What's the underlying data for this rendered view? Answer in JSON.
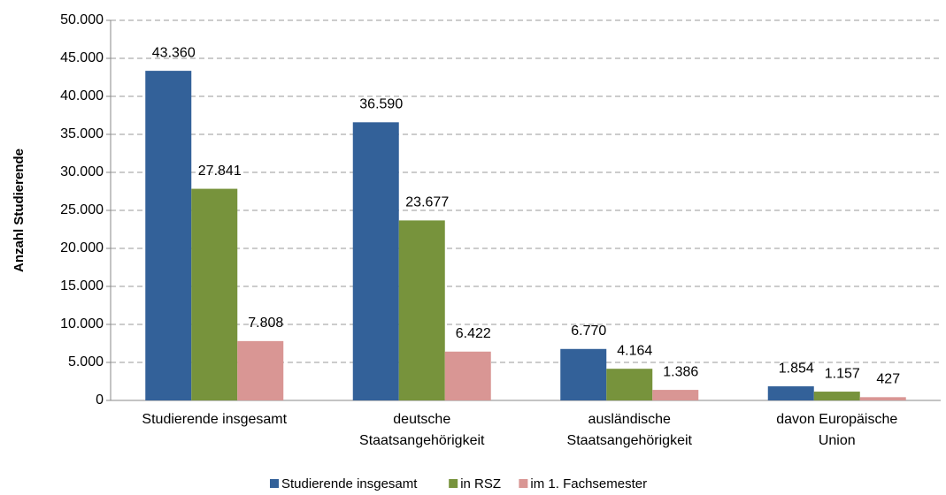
{
  "chart_data": {
    "type": "bar",
    "y_label": "Anzahl Studierende",
    "categories": [
      "Studierende insgesamt",
      "deutsche Staatsangehörigkeit",
      "ausländische Staatsangehörigkeit",
      "davon Europäische Union"
    ],
    "series": [
      {
        "name": "Studierende insgesamt",
        "color": "#336199",
        "values": [
          43360,
          36590,
          6770,
          1854
        ],
        "value_labels": [
          "43.360",
          "36.590",
          "6.770",
          "1.854"
        ]
      },
      {
        "name": "in RSZ",
        "color": "#77933c",
        "values": [
          27841,
          23677,
          4164,
          1157
        ],
        "value_labels": [
          "27.841",
          "23.677",
          "4.164",
          "1.157"
        ]
      },
      {
        "name": "im 1. Fachsemester",
        "color": "#d99694",
        "values": [
          7808,
          6422,
          1386,
          427
        ],
        "value_labels": [
          "7.808",
          "6.422",
          "1.386",
          "427"
        ]
      }
    ],
    "ylim": [
      0,
      50000
    ],
    "yticks": [
      0,
      {
        "value": 5000,
        "label": "5.000"
      },
      {
        "value": 10000,
        "label": "10.000"
      },
      {
        "value": 15000,
        "label": "15.000"
      },
      {
        "value": 20000,
        "label": "20.000"
      },
      {
        "value": 25000,
        "label": "25.000"
      },
      {
        "value": 30000,
        "label": "30.000"
      },
      {
        "value": 35000,
        "label": "35.000"
      },
      {
        "value": 40000,
        "label": "40.000"
      },
      {
        "value": 45000,
        "label": "45.000"
      },
      {
        "value": 50000,
        "label": "50.000"
      }
    ],
    "grid": true,
    "legend": "bottom"
  }
}
